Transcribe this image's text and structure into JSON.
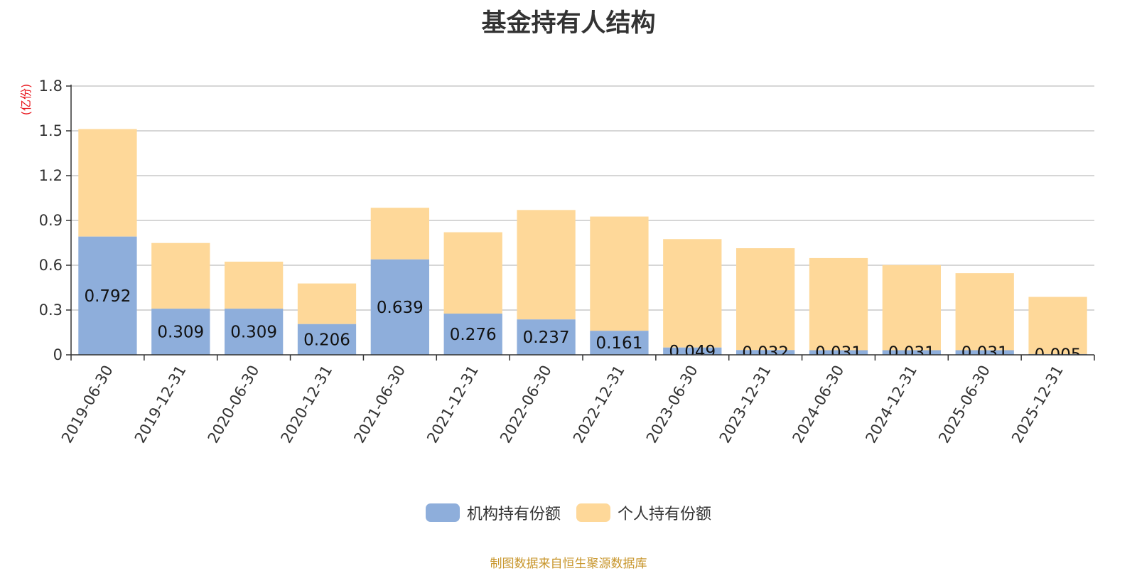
{
  "chart_data": {
    "type": "bar",
    "stacked": true,
    "title": "基金持有人结构",
    "unit_label": "(亿份)",
    "source_note": "制图数据来自恒生聚源数据库",
    "ylim": [
      0,
      1.8
    ],
    "yticks": [
      "0",
      "0.3",
      "0.6",
      "0.9",
      "1.2",
      "1.5",
      "1.8"
    ],
    "grid": true,
    "legend_position": "bottom",
    "categories": [
      "2019-06-30",
      "2019-12-31",
      "2020-06-30",
      "2020-12-31",
      "2021-06-30",
      "2021-12-31",
      "2022-06-30",
      "2022-12-31",
      "2023-06-30",
      "2023-12-31",
      "2024-06-30",
      "2024-12-31",
      "2025-06-30",
      "2025-12-31"
    ],
    "series": [
      {
        "name": "机构持有份额",
        "color": "#8eaedb",
        "values": [
          0.792,
          0.309,
          0.309,
          0.206,
          0.639,
          0.276,
          0.237,
          0.161,
          0.049,
          0.032,
          0.031,
          0.031,
          0.031,
          0.005
        ],
        "labels": [
          "0.792",
          "0.309",
          "0.309",
          "0.206",
          "0.639",
          "0.276",
          "0.237",
          "0.161",
          "0.049",
          "0.032",
          "0.031",
          "0.031",
          "0.031",
          "0.005"
        ]
      },
      {
        "name": "个人持有份额",
        "color": "#fed899",
        "values": [
          0.72,
          0.44,
          0.315,
          0.272,
          0.346,
          0.545,
          0.733,
          0.765,
          0.726,
          0.682,
          0.617,
          0.57,
          0.516,
          0.383
        ]
      }
    ]
  }
}
